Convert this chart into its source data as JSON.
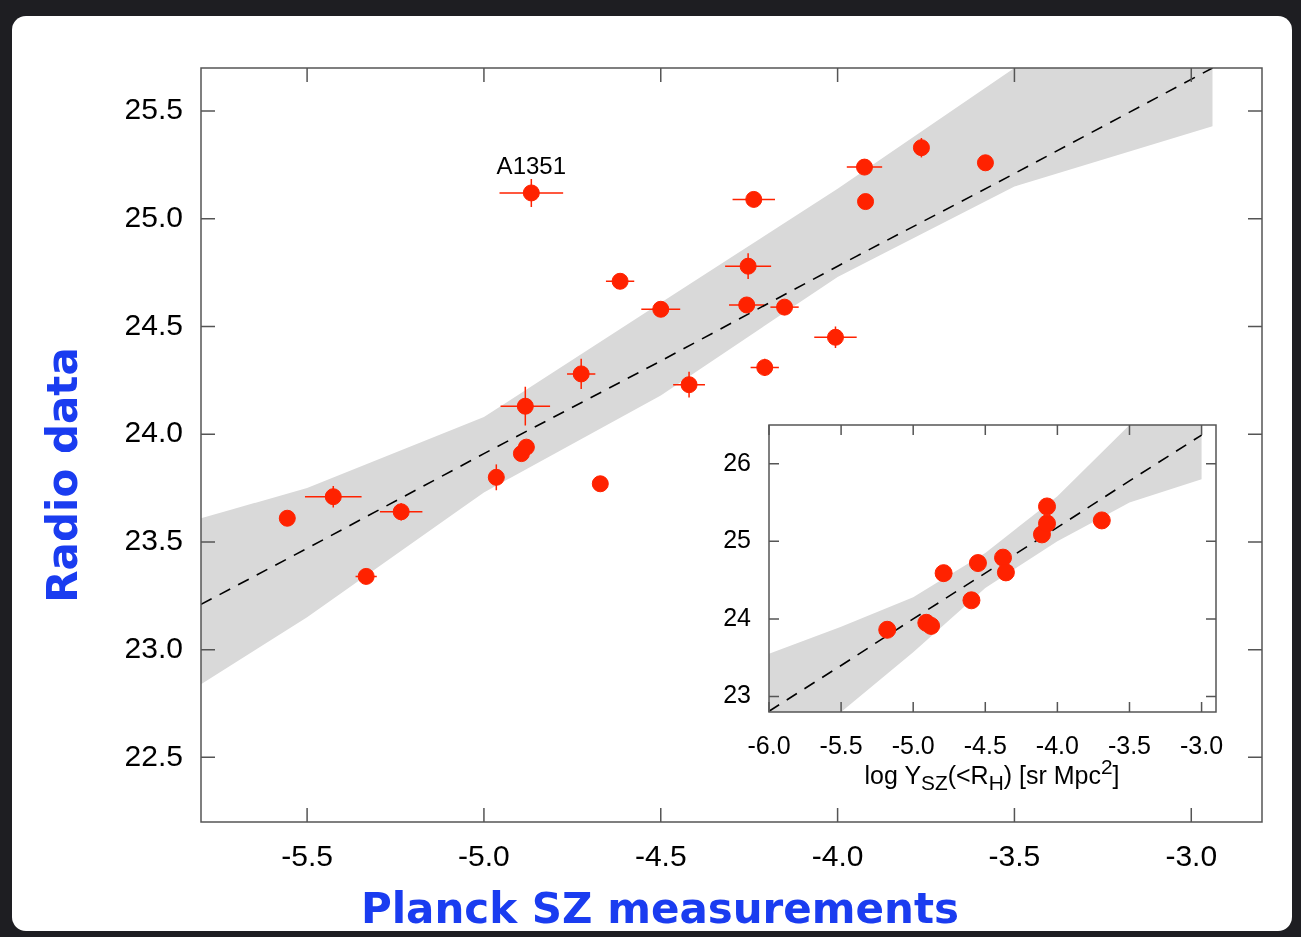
{
  "chart_data": [
    {
      "type": "scatter",
      "xlabel": "Planck SZ measurements",
      "ylabel": "Radio data",
      "xlim": [
        -5.8,
        -2.8
      ],
      "ylim": [
        22.2,
        25.7
      ],
      "xticks": [
        -5.5,
        {
          "value": -5,
          "label": "-5.0"
        },
        -4.5,
        {
          "value": -4,
          "label": "-4.0"
        },
        -3.5,
        {
          "value": -3,
          "label": "-3.0"
        }
      ],
      "yticks": [
        22.5,
        {
          "value": 23,
          "label": "23.0"
        },
        23.5,
        {
          "value": 24,
          "label": "24.0"
        },
        24.5,
        {
          "value": 25,
          "label": "25.0"
        },
        25.5
      ],
      "annotations": [
        {
          "text": "A1351",
          "x": -4.866,
          "y": 25.12
        }
      ],
      "series": [
        {
          "type": "scatter",
          "color": "#ff2200",
          "marker": "circle",
          "x": [
            -5.556,
            -5.426,
            -5.333,
            -5.234,
            -4.965,
            -4.894,
            -4.88,
            -4.883,
            -4.866,
            -4.725,
            -4.671,
            -4.615,
            -4.5,
            -4.42,
            -4.253,
            -4.257,
            -4.237,
            -4.206,
            -4.15,
            -4.006,
            -3.924,
            -3.921,
            -3.763,
            -3.582
          ],
          "values": [
            23.61,
            23.71,
            23.34,
            23.64,
            23.8,
            23.91,
            23.94,
            24.13,
            25.12,
            24.28,
            23.77,
            24.71,
            24.58,
            24.23,
            24.78,
            24.6,
            25.09,
            24.31,
            24.59,
            24.45,
            25.24,
            25.08,
            25.33,
            25.26
          ],
          "xerrors": [
            0.02,
            0.08,
            0.03,
            0.06,
            null,
            null,
            null,
            0.07,
            0.09,
            0.04,
            0.02,
            0.04,
            0.055,
            0.045,
            0.065,
            0.05,
            0.06,
            0.04,
            0.04,
            0.06,
            0.05,
            null,
            null,
            null
          ],
          "errors": [
            null,
            0.05,
            0.03,
            0.04,
            0.06,
            null,
            null,
            0.09,
            0.065,
            0.07,
            null,
            0.03,
            null,
            0.06,
            0.06,
            null,
            0.03,
            0.04,
            null,
            0.05,
            0.03,
            null,
            0.045,
            null
          ]
        },
        {
          "type": "line",
          "color": "#000000",
          "line_style": "dashed",
          "x": [
            -5.8,
            -5.5,
            -5.0,
            -4.5,
            -4.0,
            -3.5,
            -2.94
          ],
          "values": [
            23.21,
            23.47,
            23.91,
            24.34,
            24.78,
            25.21,
            25.7
          ],
          "lower": [
            22.84,
            23.15,
            23.73,
            24.18,
            24.73,
            25.15,
            25.43
          ],
          "upper": [
            23.61,
            23.75,
            24.08,
            24.61,
            25.14,
            25.7,
            25.7
          ]
        }
      ]
    },
    {
      "type": "scatter",
      "xlabel": "log Y$_{SZ}$(<R$_{H}$)  [sr Mpc$^{2}$]",
      "xlim": [
        -6,
        -2.9
      ],
      "ylim": [
        22.8,
        26.5
      ],
      "xticks": [
        {
          "value": -6,
          "label": "-6.0"
        },
        -5.5,
        {
          "value": -5,
          "label": "-5.0"
        },
        -4.5,
        {
          "value": -4,
          "label": "-4.0"
        },
        -3.5,
        {
          "value": -3,
          "label": "-3.0"
        }
      ],
      "yticks": [
        23,
        24,
        25,
        26
      ],
      "series": [
        {
          "type": "scatter",
          "color": "#ff2200",
          "marker": "circle",
          "x": [
            -5.18,
            -4.909,
            -4.876,
            -4.789,
            -4.596,
            -4.551,
            -4.377,
            -4.357,
            -4.107,
            -4.072,
            -4.072,
            -3.692
          ],
          "values": [
            23.86,
            23.95,
            23.91,
            24.59,
            24.24,
            24.72,
            24.79,
            24.6,
            25.09,
            25.23,
            25.45,
            25.27
          ]
        },
        {
          "type": "line",
          "color": "#000000",
          "line_style": "dashed",
          "x": [
            -6,
            -5.5,
            -5.0,
            -4.5,
            -4.0,
            -3.5,
            -3.0
          ],
          "values": [
            22.81,
            23.4,
            24.0,
            24.59,
            25.18,
            25.78,
            26.37
          ],
          "lower": [
            22.8,
            22.8,
            23.57,
            24.4,
            25.0,
            25.5,
            25.8
          ],
          "upper": [
            23.55,
            23.9,
            24.28,
            24.85,
            25.58,
            26.5,
            26.5
          ]
        }
      ]
    }
  ]
}
